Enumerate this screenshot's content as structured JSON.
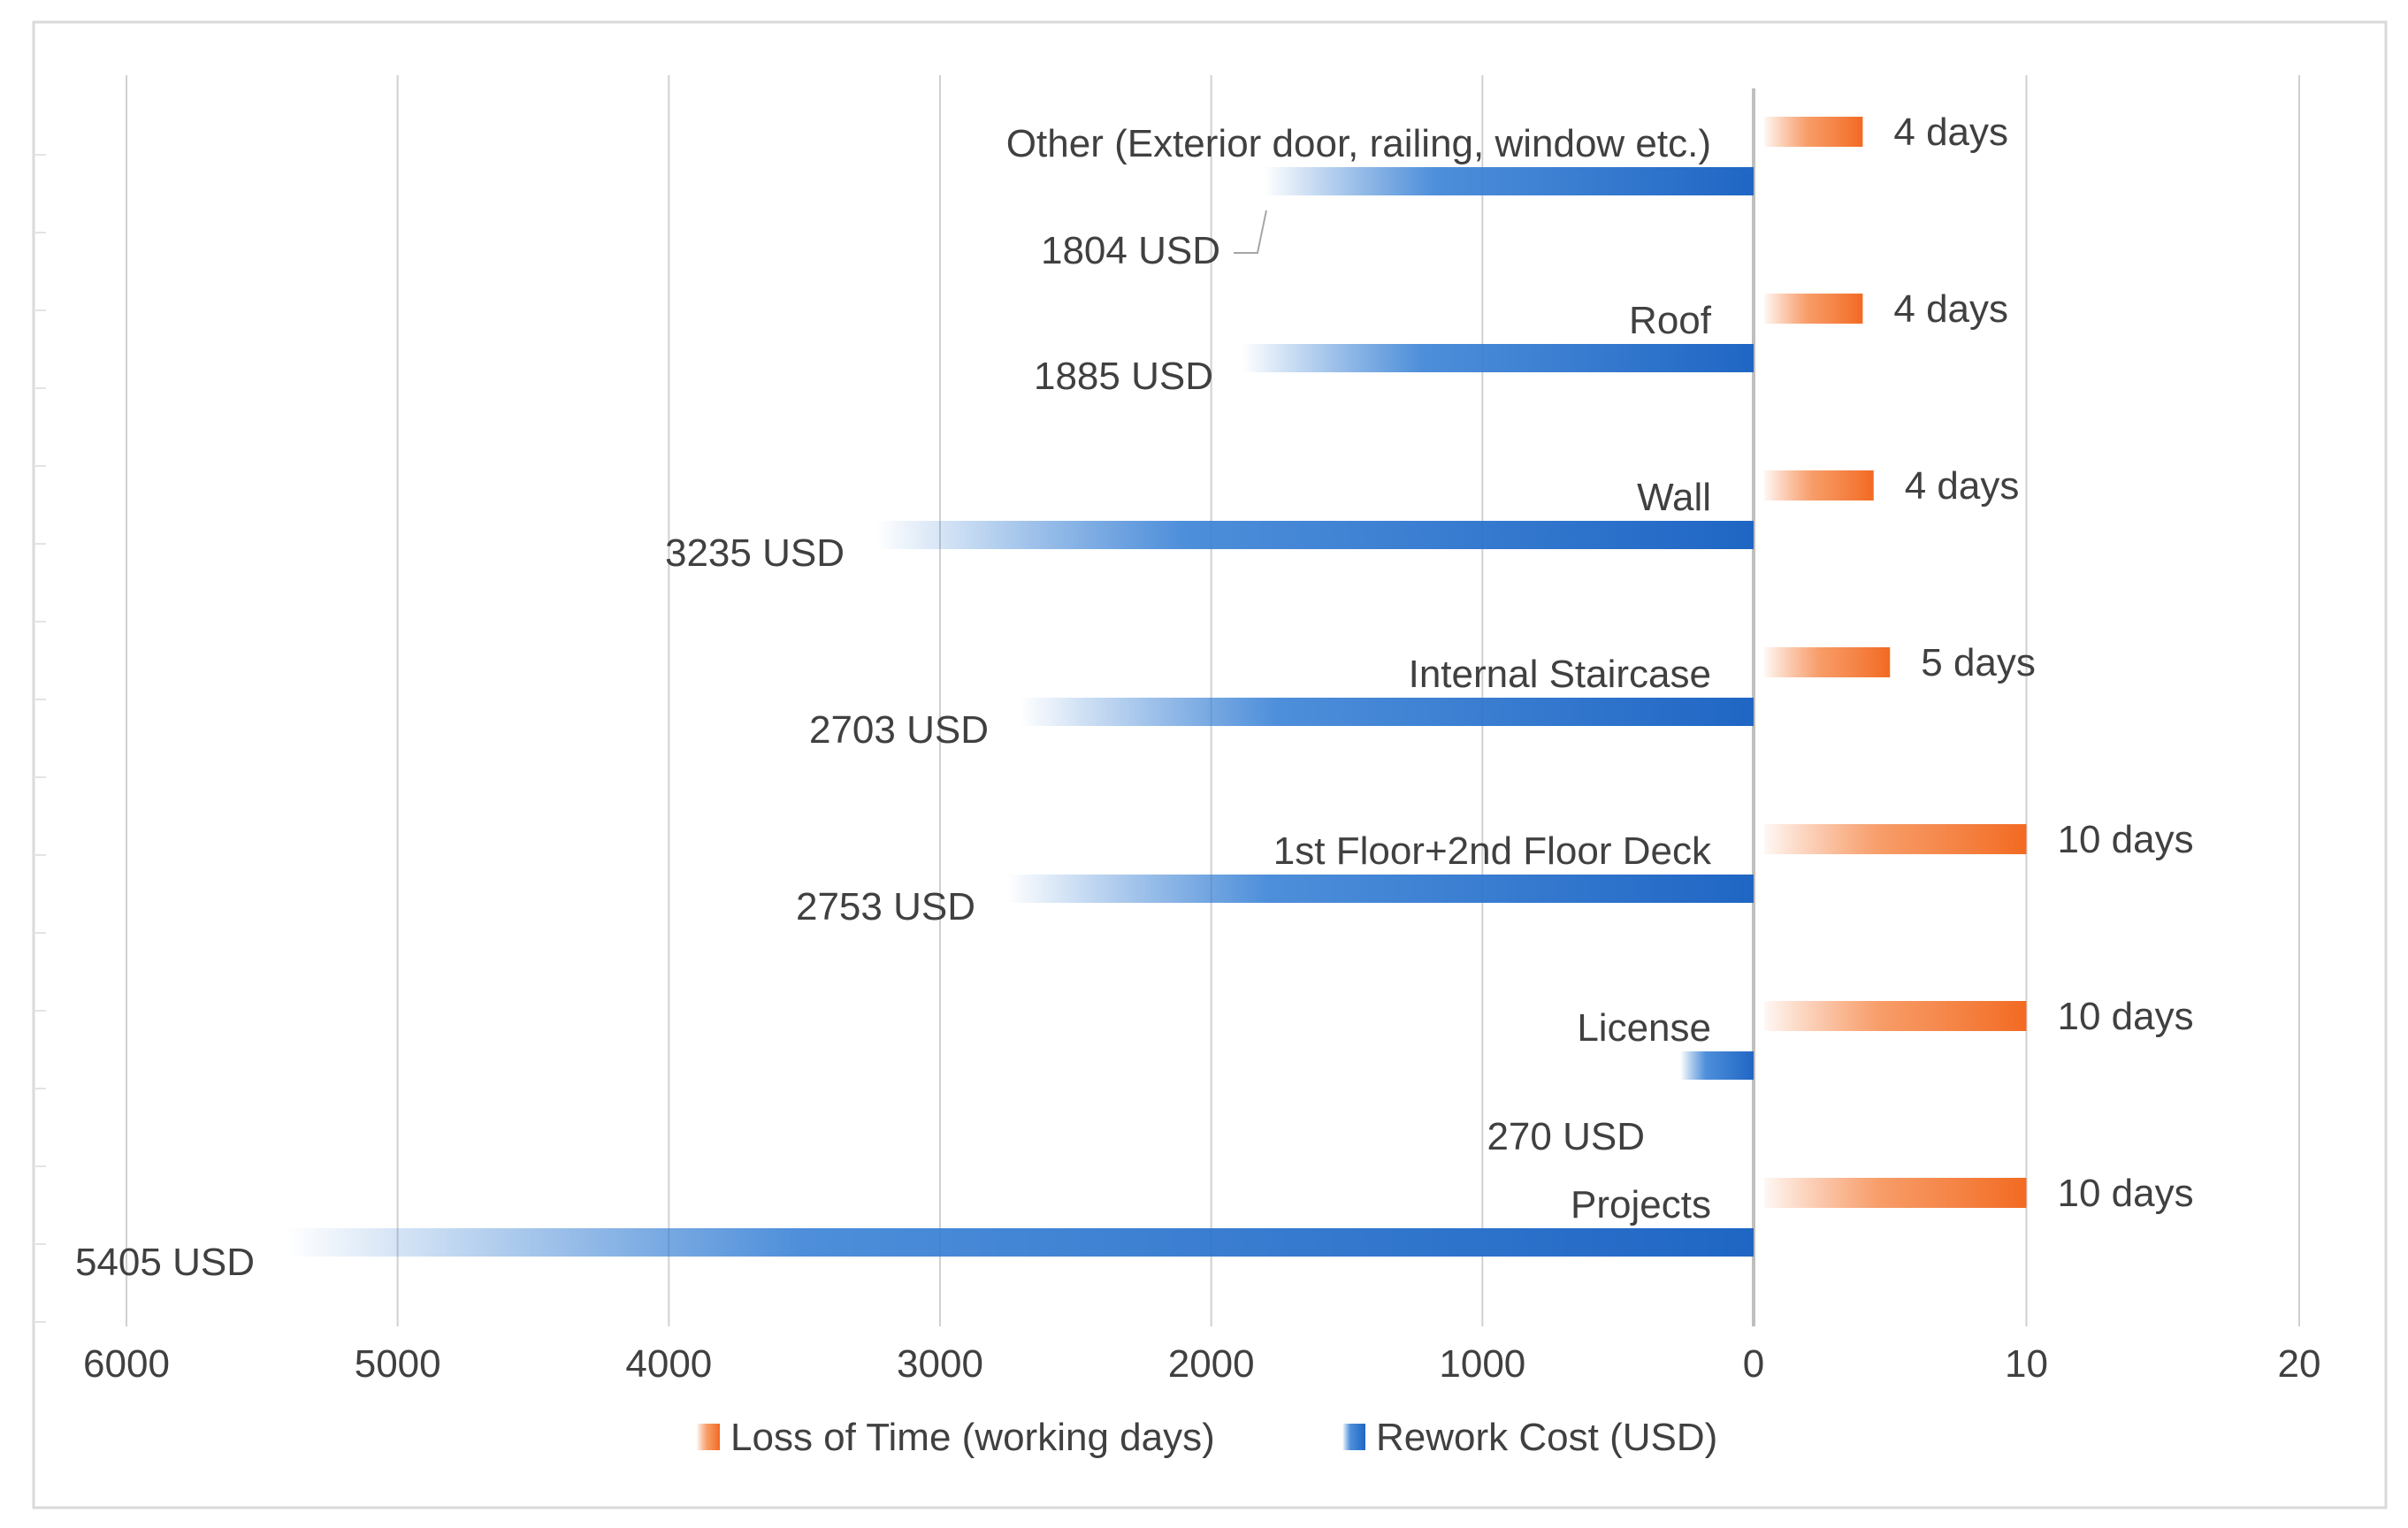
{
  "chart_data": {
    "type": "bar",
    "orientation": "horizontal",
    "layout": "back-to-back",
    "categories": [
      "Other (Exterior door, railing, window etc.)",
      "Roof",
      "Wall",
      "Internal Staircase",
      "1st Floor+2nd Floor Deck",
      "License",
      "Projects"
    ],
    "series": [
      {
        "name": "Loss of Time (working days)",
        "side": "right",
        "color": "#F4742F",
        "values": [
          4,
          4,
          4.4,
          5,
          10,
          10,
          10
        ],
        "labels": [
          "4 days",
          "4 days",
          "4 days",
          "5 days",
          "10 days",
          "10 days",
          "10 days"
        ]
      },
      {
        "name": "Rework Cost (USD)",
        "side": "left",
        "color": "#1F6FCC",
        "values": [
          1804,
          1885,
          3235,
          2703,
          2753,
          270,
          5405
        ],
        "labels": [
          "1804 USD",
          "1885 USD",
          "3235 USD",
          "2703 USD",
          "2753 USD",
          "270 USD",
          "5405 USD"
        ]
      }
    ],
    "left_axis": {
      "ticks": [
        6000,
        5000,
        4000,
        3000,
        2000,
        1000,
        0
      ],
      "range": [
        0,
        6000
      ]
    },
    "right_axis": {
      "ticks": [
        10,
        20
      ],
      "range": [
        0,
        20
      ]
    },
    "grid": true,
    "legend": "bottom"
  }
}
